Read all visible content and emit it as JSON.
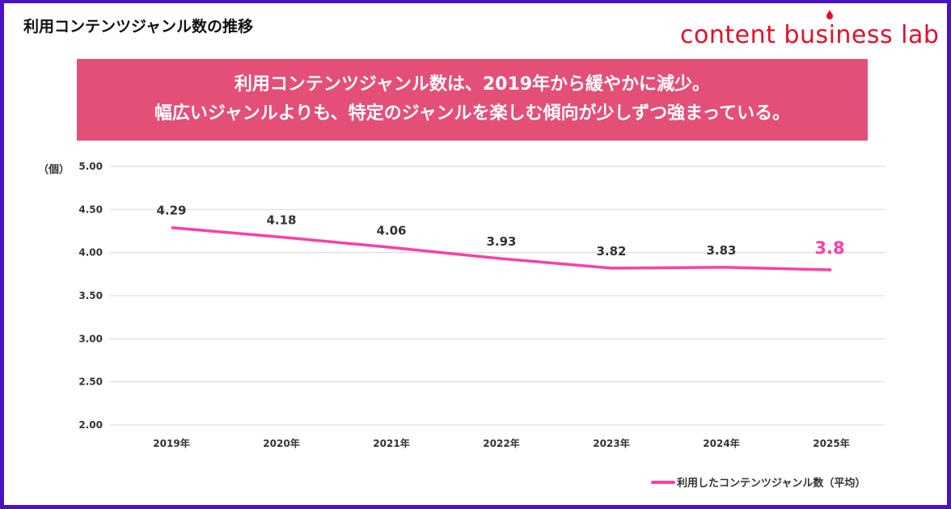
{
  "title": "利用コンテンツジャンル数の推移",
  "logo": "content business lab",
  "banner": {
    "line1": "利用コンテンツジャンル数は、2019年から緩やかに減少。",
    "line2": "幅広いジャンルよりも、特定のジャンルを楽しむ傾向が少しずつ強まっている。"
  },
  "colors": {
    "border": "#4a12c4",
    "banner": "#e44f77",
    "line": "#ff3fa4",
    "logo": "#e0102a"
  },
  "chart_data": {
    "type": "line",
    "ylabel": "（個）",
    "ylim": [
      2.0,
      5.0
    ],
    "yticks": [
      "5.00",
      "4.50",
      "4.00",
      "3.50",
      "3.00",
      "2.50",
      "2.00"
    ],
    "grid": true,
    "legend_position": "bottom-right",
    "categories": [
      "2019年",
      "2020年",
      "2021年",
      "2022年",
      "2023年",
      "2024年",
      "2025年"
    ],
    "series": [
      {
        "name": "利用したコンテンツジャンル数（平均）",
        "values": [
          4.29,
          4.18,
          4.06,
          3.93,
          3.82,
          3.83,
          3.8
        ],
        "labels": [
          "4.29",
          "4.18",
          "4.06",
          "3.93",
          "3.82",
          "3.83",
          "3.8"
        ]
      }
    ]
  }
}
